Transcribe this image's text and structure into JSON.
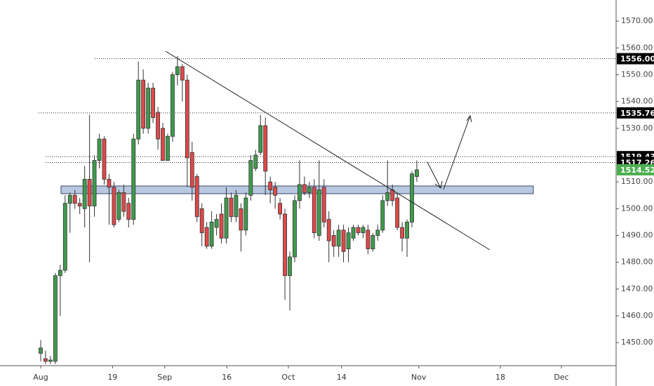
{
  "chart_data": {
    "type": "candlestick",
    "open": [
      1446,
      1444,
      1443,
      1443,
      1475,
      1477,
      1502,
      1505,
      1502,
      1500,
      1511,
      1501,
      1518,
      1526,
      1511,
      1508,
      1496,
      1506,
      1502,
      1496,
      1526,
      1548,
      1530,
      1545,
      1536,
      1530,
      1518,
      1527,
      1550,
      1553,
      1548,
      1521,
      1512,
      1500,
      1493,
      1486,
      1493,
      1498,
      1489,
      1504,
      1497,
      1500,
      1492,
      1505,
      1515,
      1521,
      1531,
      1510,
      1508,
      1502,
      1498,
      1475,
      1482,
      1503,
      1509,
      1506,
      1508,
      1490,
      1508,
      1496,
      1490,
      1486,
      1492,
      1485,
      1489,
      1493,
      1491,
      1492,
      1485,
      1490,
      1492,
      1503,
      1507,
      1504,
      1493,
      1489,
      1495,
      1512
    ],
    "high": [
      1451,
      1447,
      1445,
      1476,
      1479,
      1505,
      1506,
      1507,
      1504,
      1516,
      1535,
      1520,
      1528,
      1527,
      1513,
      1510,
      1507,
      1509,
      1504,
      1528,
      1555,
      1552,
      1547,
      1547,
      1538,
      1532,
      1528,
      1551,
      1557,
      1554,
      1550,
      1525,
      1513,
      1502,
      1495,
      1499,
      1498,
      1502,
      1508,
      1506,
      1507,
      1502,
      1506,
      1520,
      1522,
      1535,
      1534,
      1512,
      1510,
      1504,
      1500,
      1484,
      1505,
      1518,
      1512,
      1510,
      1511,
      1518,
      1511,
      1499,
      1492,
      1494,
      1494,
      1493,
      1494,
      1494,
      1494,
      1494,
      1491,
      1494,
      1505,
      1518,
      1509,
      1506,
      1495,
      1496,
      1514,
      1518
    ],
    "low": [
      1443,
      1442,
      1442,
      1442,
      1460,
      1476,
      1491,
      1500,
      1498,
      1493,
      1480,
      1497,
      1515,
      1509,
      1494,
      1493,
      1495,
      1497,
      1493,
      1494,
      1524,
      1528,
      1528,
      1532,
      1522,
      1518,
      1518,
      1525,
      1546,
      1540,
      1508,
      1503,
      1495,
      1486,
      1485,
      1485,
      1490,
      1487,
      1487,
      1495,
      1495,
      1484,
      1490,
      1503,
      1514,
      1520,
      1505,
      1502,
      1500,
      1496,
      1466,
      1462,
      1480,
      1500,
      1505,
      1504,
      1489,
      1488,
      1493,
      1480,
      1482,
      1482,
      1480,
      1480,
      1488,
      1490,
      1489,
      1483,
      1484,
      1488,
      1491,
      1501,
      1501,
      1492,
      1484,
      1482,
      1493,
      1510
    ],
    "close": [
      1448,
      1443,
      1443.5,
      1475,
      1477,
      1502,
      1505,
      1502,
      1501,
      1511,
      1501,
      1518,
      1526,
      1511,
      1508,
      1494,
      1506,
      1499,
      1496,
      1526,
      1548,
      1530,
      1545,
      1534,
      1526,
      1518,
      1527,
      1550,
      1553,
      1548,
      1519,
      1508,
      1497,
      1491,
      1486,
      1495,
      1496,
      1489,
      1504,
      1497,
      1505,
      1492,
      1504,
      1518,
      1520,
      1531,
      1514,
      1507,
      1505,
      1498,
      1475,
      1482,
      1503,
      1509,
      1506,
      1508,
      1491,
      1507,
      1495,
      1488,
      1486,
      1492,
      1484,
      1491,
      1493,
      1491,
      1493,
      1485,
      1490,
      1492,
      1503,
      1506,
      1503,
      1493,
      1489,
      1495,
      1513,
      1514.5
    ],
    "up_color": "#3f9b4b",
    "down_color": "#e04848",
    "xlim": [
      -8.33,
      117.8
    ],
    "xticks": [
      {
        "value": 0,
        "label": "Aug"
      },
      {
        "value": 14.7,
        "label": "19"
      },
      {
        "value": 25.4,
        "label": "Sep"
      },
      {
        "value": 38.1,
        "label": "16"
      },
      {
        "value": 50.7,
        "label": "Oct"
      },
      {
        "value": 61.6,
        "label": "14"
      },
      {
        "value": 77.4,
        "label": "Nov"
      },
      {
        "value": 94.1,
        "label": "18"
      },
      {
        "value": 106.6,
        "label": "Dec"
      }
    ],
    "ylim": [
      1441.4,
      1577.9
    ],
    "yticks": [
      {
        "value": 1450,
        "label": "1450.00"
      },
      {
        "value": 1460,
        "label": "1460.00"
      },
      {
        "value": 1470,
        "label": "1470.00"
      },
      {
        "value": 1480,
        "label": "1480.00"
      },
      {
        "value": 1490,
        "label": "1490.00"
      },
      {
        "value": 1500,
        "label": "1500.00"
      },
      {
        "value": 1510,
        "label": "1510.00"
      },
      {
        "value": 1520,
        "label": "1520.00"
      },
      {
        "value": 1530,
        "label": "1530.00"
      },
      {
        "value": 1540,
        "label": "1540.00"
      },
      {
        "value": 1550,
        "label": "1550.00"
      },
      {
        "value": 1560,
        "label": "1560.00"
      },
      {
        "value": 1570,
        "label": "1570.00"
      }
    ],
    "price_labels": [
      {
        "value": 1556,
        "label": "1556.00",
        "color": "#000000"
      },
      {
        "value": 1535.76,
        "label": "1535.76",
        "color": "#000000"
      },
      {
        "value": 1519.43,
        "label": "1519.43",
        "color": "#000000"
      },
      {
        "value": 1517.26,
        "label": "1517.26",
        "color": "#000000"
      },
      {
        "value": 1514.52,
        "label": "1514.52",
        "color": "#4caf50"
      }
    ]
  }
}
